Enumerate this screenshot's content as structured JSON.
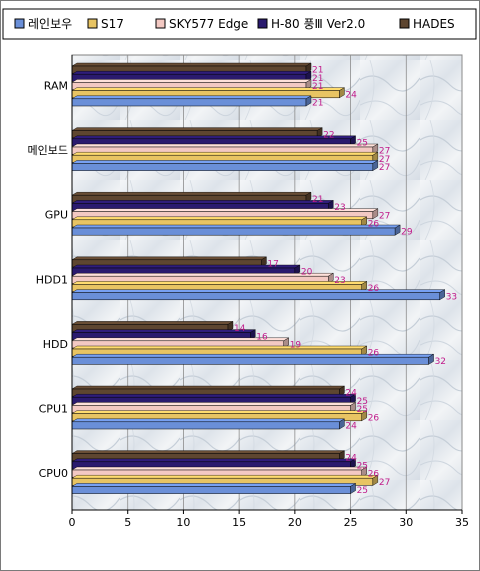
{
  "chart_data": {
    "type": "bar",
    "orientation": "horizontal",
    "categories": [
      "RAM",
      "메인보드",
      "GPU",
      "HDD1",
      "HDD",
      "CPU1",
      "CPU0"
    ],
    "series": [
      {
        "name": "레인보우",
        "color": "#6a8fd8",
        "values": [
          21,
          27,
          29,
          33,
          32,
          24,
          25
        ]
      },
      {
        "name": "S17",
        "color": "#e8c463",
        "values": [
          24,
          27,
          26,
          26,
          26,
          26,
          27
        ]
      },
      {
        "name": "SKY577 Edge",
        "color": "#f3c9c3",
        "values": [
          21,
          27,
          27,
          23,
          19,
          25,
          26
        ]
      },
      {
        "name": "H-80 풍Ⅲ Ver2.0",
        "color": "#2a1a6e",
        "values": [
          21,
          25,
          23,
          20,
          16,
          25,
          25
        ]
      },
      {
        "name": "HADES",
        "color": "#5e4630",
        "values": [
          21,
          22,
          21,
          17,
          14,
          24,
          24
        ]
      }
    ],
    "xlim": [
      0,
      35
    ],
    "xticks": [
      0,
      5,
      10,
      15,
      20,
      25,
      30,
      35
    ],
    "grid": true,
    "legend": "top",
    "title": "",
    "xlabel": "",
    "ylabel": ""
  }
}
